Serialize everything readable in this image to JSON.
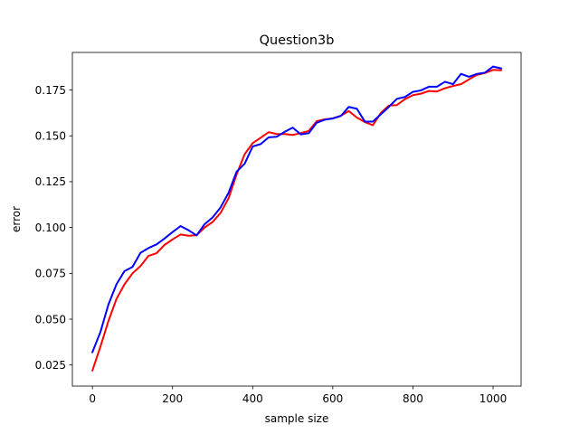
{
  "chart_data": {
    "type": "line",
    "title": "Question3b",
    "xlabel": "sample size",
    "ylabel": "error",
    "xlim": [
      -50,
      1070
    ],
    "ylim": [
      0.0135,
      0.1955
    ],
    "xticks": [
      0,
      200,
      400,
      600,
      800,
      1000
    ],
    "xtick_labels": [
      "0",
      "200",
      "400",
      "600",
      "800",
      "1000"
    ],
    "yticks": [
      0.025,
      0.05,
      0.075,
      0.1,
      0.125,
      0.15,
      0.175
    ],
    "ytick_labels": [
      "0.025",
      "0.050",
      "0.075",
      "0.100",
      "0.125",
      "0.150",
      "0.175"
    ],
    "grid": false,
    "x": [
      0,
      20,
      40,
      60,
      80,
      100,
      120,
      140,
      160,
      180,
      200,
      220,
      240,
      260,
      280,
      300,
      320,
      340,
      360,
      380,
      400,
      420,
      440,
      460,
      480,
      500,
      520,
      540,
      560,
      580,
      600,
      620,
      640,
      660,
      680,
      700,
      720,
      740,
      760,
      780,
      800,
      820,
      840,
      860,
      880,
      900,
      920,
      940,
      960,
      980,
      1000,
      1020
    ],
    "series": [
      {
        "color": "#ff0000",
        "values": [
          0.022,
          0.035,
          0.049,
          0.061,
          0.069,
          0.075,
          0.079,
          0.0845,
          0.086,
          0.0905,
          0.0935,
          0.0962,
          0.0955,
          0.0958,
          0.1,
          0.103,
          0.108,
          0.116,
          0.129,
          0.14,
          0.146,
          0.149,
          0.152,
          0.151,
          0.151,
          0.1505,
          0.1515,
          0.1527,
          0.158,
          0.159,
          0.1595,
          0.161,
          0.1635,
          0.16,
          0.1575,
          0.1558,
          0.1625,
          0.1665,
          0.1668,
          0.17,
          0.1722,
          0.173,
          0.1745,
          0.1742,
          0.176,
          0.1772,
          0.1782,
          0.1808,
          0.1833,
          0.1843,
          0.186,
          0.1858
        ]
      },
      {
        "color": "#0000ff",
        "values": [
          0.032,
          0.043,
          0.058,
          0.069,
          0.0762,
          0.0785,
          0.0862,
          0.0888,
          0.0908,
          0.094,
          0.0975,
          0.1008,
          0.0985,
          0.0957,
          0.1018,
          0.1055,
          0.111,
          0.119,
          0.1305,
          0.1348,
          0.1442,
          0.1455,
          0.1492,
          0.1495,
          0.1522,
          0.1545,
          0.1508,
          0.1515,
          0.1572,
          0.1588,
          0.1595,
          0.1608,
          0.1658,
          0.1648,
          0.1578,
          0.1578,
          0.1618,
          0.1658,
          0.1702,
          0.1712,
          0.174,
          0.1748,
          0.1768,
          0.1768,
          0.1795,
          0.1782,
          0.1838,
          0.1822,
          0.1838,
          0.1845,
          0.1878,
          0.1868
        ]
      }
    ]
  }
}
